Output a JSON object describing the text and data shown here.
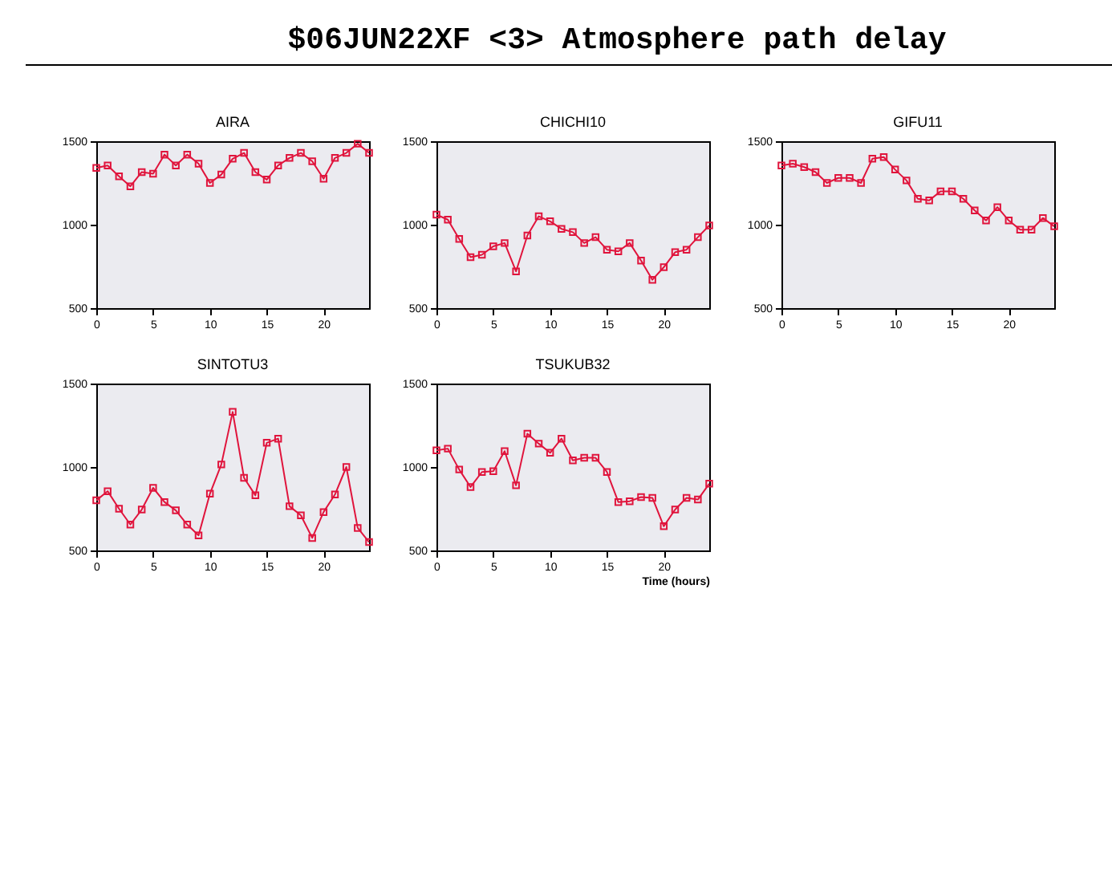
{
  "chart_data": [
    {
      "type": "other",
      "title": "$06JUN22XF <3>  Atmosphere path delay"
    },
    {
      "type": "line",
      "title": "AIRA",
      "marker": "square",
      "xlim": [
        0,
        24
      ],
      "xticks": [
        0,
        5,
        10,
        15,
        20
      ],
      "ylim": [
        500,
        1500
      ],
      "yticks": [
        500,
        1000,
        1500
      ],
      "x": [
        0,
        1,
        2,
        3,
        4,
        5,
        6,
        7,
        8,
        9,
        10,
        11,
        12,
        13,
        14,
        15,
        16,
        17,
        18,
        19,
        20,
        21,
        22,
        23,
        24
      ],
      "series": [
        {
          "color": "#e0143c",
          "values": [
            1340,
            1355,
            1290,
            1230,
            1315,
            1305,
            1420,
            1355,
            1420,
            1365,
            1250,
            1300,
            1395,
            1430,
            1315,
            1270,
            1355,
            1400,
            1430,
            1380,
            1275,
            1400,
            1430,
            1485,
            1430
          ]
        }
      ]
    },
    {
      "type": "line",
      "title": "CHICHI10",
      "marker": "square",
      "xlim": [
        0,
        24
      ],
      "xticks": [
        0,
        5,
        10,
        15,
        20
      ],
      "ylim": [
        500,
        1500
      ],
      "yticks": [
        500,
        1000,
        1500
      ],
      "x": [
        0,
        1,
        2,
        3,
        4,
        5,
        6,
        7,
        8,
        9,
        10,
        11,
        12,
        13,
        14,
        15,
        16,
        17,
        18,
        19,
        20,
        21,
        22,
        23,
        24
      ],
      "series": [
        {
          "color": "#e0143c",
          "values": [
            1060,
            1030,
            915,
            805,
            820,
            870,
            890,
            720,
            935,
            1050,
            1020,
            975,
            955,
            890,
            925,
            850,
            840,
            890,
            785,
            670,
            745,
            835,
            850,
            925,
            995
          ]
        }
      ]
    },
    {
      "type": "line",
      "title": "GIFU11",
      "marker": "square",
      "xlim": [
        0,
        24
      ],
      "xticks": [
        0,
        5,
        10,
        15,
        20
      ],
      "ylim": [
        500,
        1500
      ],
      "yticks": [
        500,
        1000,
        1500
      ],
      "x": [
        0,
        1,
        2,
        3,
        4,
        5,
        6,
        7,
        8,
        9,
        10,
        11,
        12,
        13,
        14,
        15,
        16,
        17,
        18,
        19,
        20,
        21,
        22,
        23,
        24
      ],
      "series": [
        {
          "color": "#e0143c",
          "values": [
            1355,
            1365,
            1345,
            1315,
            1250,
            1280,
            1280,
            1250,
            1395,
            1405,
            1330,
            1265,
            1155,
            1145,
            1200,
            1200,
            1155,
            1085,
            1025,
            1105,
            1025,
            970,
            970,
            1040,
            990
          ]
        }
      ]
    },
    {
      "type": "line",
      "title": "SINTOTU3",
      "marker": "square",
      "xlim": [
        0,
        24
      ],
      "xticks": [
        0,
        5,
        10,
        15,
        20
      ],
      "ylim": [
        500,
        1500
      ],
      "yticks": [
        500,
        1000,
        1500
      ],
      "x": [
        0,
        1,
        2,
        3,
        4,
        5,
        6,
        7,
        8,
        9,
        10,
        11,
        12,
        13,
        14,
        15,
        16,
        17,
        18,
        19,
        20,
        21,
        22,
        23,
        24
      ],
      "series": [
        {
          "color": "#e0143c",
          "values": [
            800,
            855,
            750,
            655,
            745,
            875,
            790,
            740,
            655,
            590,
            840,
            1015,
            1330,
            935,
            830,
            1145,
            1170,
            765,
            710,
            575,
            730,
            835,
            1000,
            635,
            550
          ]
        }
      ]
    },
    {
      "type": "line",
      "title": "TSUKUB32",
      "xlabel": "Time (hours)",
      "marker": "square",
      "xlim": [
        0,
        24
      ],
      "xticks": [
        0,
        5,
        10,
        15,
        20
      ],
      "ylim": [
        500,
        1500
      ],
      "yticks": [
        500,
        1000,
        1500
      ],
      "x": [
        0,
        1,
        2,
        3,
        4,
        5,
        6,
        7,
        8,
        9,
        10,
        11,
        12,
        13,
        14,
        15,
        16,
        17,
        18,
        19,
        20,
        21,
        22,
        23,
        24
      ],
      "series": [
        {
          "color": "#e0143c",
          "values": [
            1100,
            1110,
            985,
            880,
            970,
            975,
            1095,
            890,
            1200,
            1140,
            1085,
            1170,
            1040,
            1055,
            1055,
            970,
            790,
            795,
            820,
            815,
            645,
            745,
            815,
            805,
            900
          ]
        }
      ]
    }
  ]
}
